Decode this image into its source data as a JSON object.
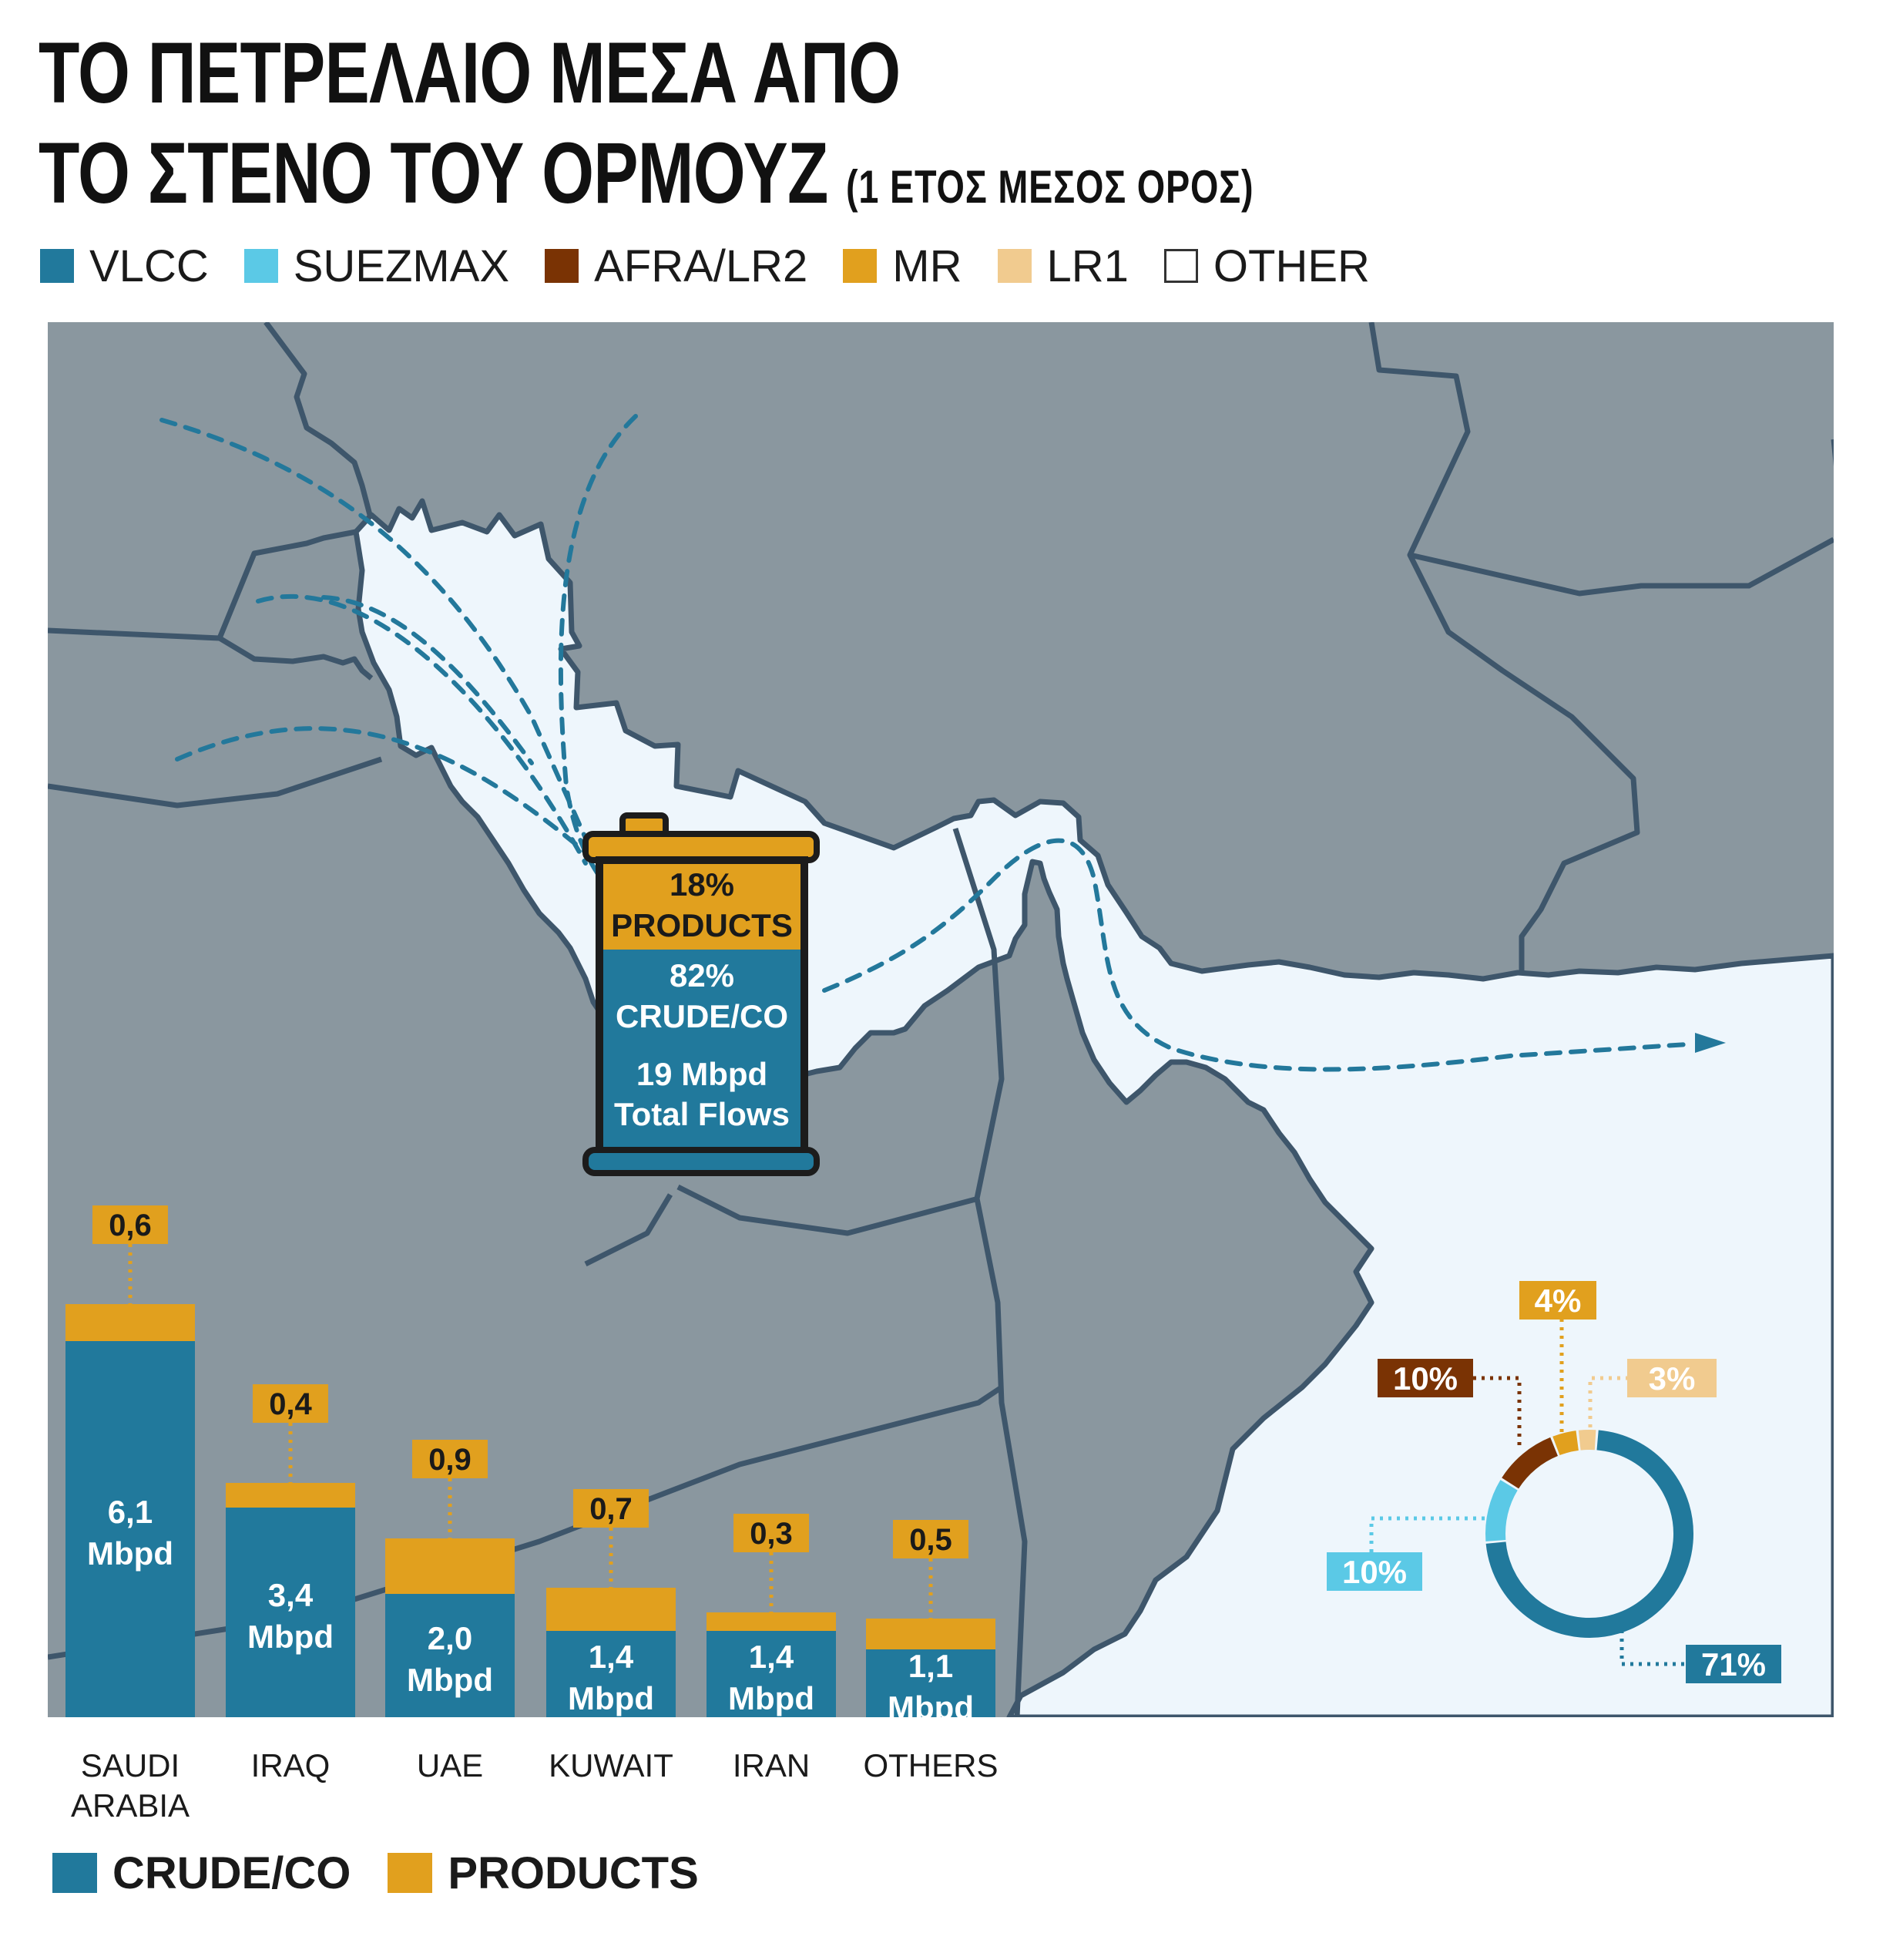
{
  "title": {
    "line1": "ΤΟ ΠΕΤΡΕΛΑΙΟ ΜΕΣΑ ΑΠΟ",
    "line2": "ΤΟ ΣΤΕΝΟ ΤΟΥ ΟΡΜΟΥΖ",
    "note": "(1 ΕΤΟΣ ΜΕΣΟΣ ΟΡΟΣ)"
  },
  "vessel_legend": [
    {
      "label": "VLCC",
      "color": "#21799c"
    },
    {
      "label": "SUEZMAX",
      "color": "#5bc9e6"
    },
    {
      "label": "AFRA/LR2",
      "color": "#7a3304"
    },
    {
      "label": "MR",
      "color": "#e1a01e"
    },
    {
      "label": "LR1",
      "color": "#f1cb8f"
    },
    {
      "label": "OTHER",
      "color": "#ffffff"
    }
  ],
  "flow_legend": [
    {
      "label": "CRUDE/CO",
      "color": "#21799c"
    },
    {
      "label": "PRODUCTS",
      "color": "#e1a01e"
    }
  ],
  "barrel": {
    "products_pct": "18%",
    "products_label": "PRODUCTS",
    "crude_pct": "82%",
    "crude_label": "CRUDE/CO",
    "total_value": "19 Mbpd",
    "total_label": "Total Flows"
  },
  "map": {
    "land_color": "#8a979f",
    "sea_color": "#eef6fc",
    "border_color": "#3e566b",
    "route_color": "#23789b"
  },
  "chart_data": [
    {
      "type": "bar",
      "stacked": true,
      "units": "Mbpd",
      "categories": [
        "SAUDI ARABIA",
        "IRAQ",
        "UAE",
        "KUWAIT",
        "IRAN",
        "OTHERS"
      ],
      "category_lines": [
        [
          "SAUDI",
          "ARABIA"
        ],
        [
          "IRAQ"
        ],
        [
          "UAE"
        ],
        [
          "KUWAIT"
        ],
        [
          "IRAN"
        ],
        [
          "OTHERS"
        ]
      ],
      "series": [
        {
          "name": "CRUDE/CO",
          "color": "#21799c",
          "values": [
            6.1,
            3.4,
            2.0,
            1.4,
            1.4,
            1.1
          ],
          "labels": [
            "6,1",
            "3,4",
            "2,0",
            "1,4",
            "1,4",
            "1,1"
          ]
        },
        {
          "name": "PRODUCTS",
          "color": "#e1a01e",
          "values": [
            0.6,
            0.4,
            0.9,
            0.7,
            0.3,
            0.5
          ],
          "labels": [
            "0,6",
            "0,4",
            "0,9",
            "0,7",
            "0,3",
            "0,5"
          ]
        }
      ],
      "value_unit_label": "Mbpd"
    },
    {
      "type": "pie",
      "donut": true,
      "slices": [
        {
          "name": "VLCC",
          "value": 71,
          "label": "71%",
          "color": "#21799c"
        },
        {
          "name": "SUEZMAX",
          "value": 10,
          "label": "10%",
          "color": "#5bc9e6"
        },
        {
          "name": "AFRA/LR2",
          "value": 10,
          "label": "10%",
          "color": "#7a3304"
        },
        {
          "name": "MR",
          "value": 4,
          "label": "4%",
          "color": "#e1a01e"
        },
        {
          "name": "LR1",
          "value": 3,
          "label": "3%",
          "color": "#f1cb8f"
        }
      ]
    }
  ]
}
